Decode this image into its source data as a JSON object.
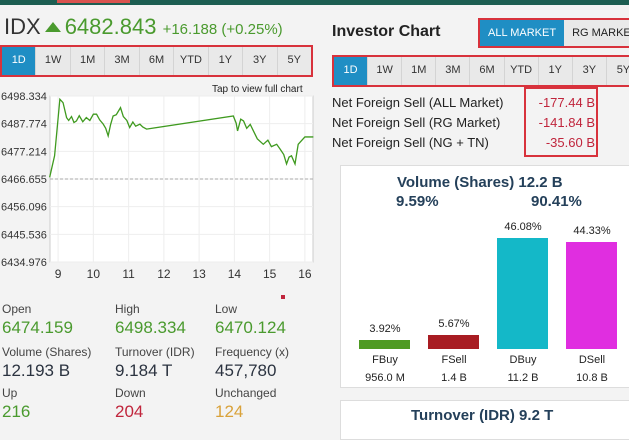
{
  "header": {
    "index": "IDX",
    "value": "6482.843",
    "change": "+16.188 (+0.25%)"
  },
  "periods": [
    "1D",
    "1W",
    "1M",
    "3M",
    "6M",
    "YTD",
    "1Y",
    "3Y",
    "5Y"
  ],
  "active_period": "1D",
  "chart_hint": "Tap to view full chart",
  "chart_data": {
    "type": "line",
    "yticks": [
      "6498.334",
      "6487.774",
      "6477.214",
      "6466.655",
      "6456.096",
      "6445.536",
      "6434.976"
    ],
    "ylim": [
      6434.976,
      6498.334
    ],
    "xticks": [
      "9",
      "10",
      "11",
      "12",
      "13",
      "14",
      "15",
      "16"
    ],
    "xlim": [
      8.77,
      16.23
    ],
    "reference_line": 6466.655,
    "series": [
      {
        "name": "IDX",
        "color": "#3f9a1f",
        "x": [
          8.76,
          8.9,
          9.05,
          9.14,
          9.24,
          9.3,
          9.38,
          9.45,
          9.52,
          9.6,
          9.7,
          9.8,
          9.9,
          10.0,
          10.09,
          10.18,
          10.28,
          10.35,
          10.42,
          10.49,
          10.56,
          10.65,
          10.77,
          10.85,
          10.95,
          11.03,
          11.12,
          11.2,
          11.32,
          11.4,
          11.51,
          13.97,
          14.05,
          14.09,
          14.18,
          14.26,
          14.35,
          14.45,
          14.54,
          14.65,
          14.82,
          14.95,
          15.05,
          15.2,
          15.3,
          15.4,
          15.48,
          15.55,
          15.62,
          15.72,
          15.81,
          16.0,
          16.24
        ],
        "y": [
          6467.3,
          6475.5,
          6497.1,
          6495.8,
          6490.1,
          6489.0,
          6490.5,
          6488.2,
          6488.8,
          6490.8,
          6488.5,
          6490.1,
          6489.0,
          6491.4,
          6491.4,
          6489.2,
          6487.6,
          6486.0,
          6483.1,
          6487.5,
          6490.7,
          6491.2,
          6493.9,
          6490.5,
          6489.0,
          6486.3,
          6488.4,
          6486.8,
          6487.6,
          6486.5,
          6485.7,
          6490.7,
          6488.0,
          6485.0,
          6489.5,
          6488.8,
          6486.0,
          6487.5,
          6485.0,
          6482.0,
          6479.9,
          6481.5,
          6479.0,
          6479.9,
          6478.0,
          6476.0,
          6472.4,
          6475.0,
          6475.5,
          6472.4,
          6479.9,
          6482.7,
          6482.7
        ]
      }
    ]
  },
  "stats": [
    {
      "label": "Open",
      "value": "6474.159",
      "color": "green"
    },
    {
      "label": "High",
      "value": "6498.334",
      "color": "green"
    },
    {
      "label": "Low",
      "value": "6470.124",
      "color": "green"
    },
    {
      "label": "Volume (Shares)",
      "value": "12.193 B",
      "color": "dark"
    },
    {
      "label": "Turnover (IDR)",
      "value": "9.184 T",
      "color": "dark"
    },
    {
      "label": "Frequency (x)",
      "value": "457,780",
      "color": "dark"
    },
    {
      "label": "Up",
      "value": "216",
      "color": "green"
    },
    {
      "label": "Down",
      "value": "204",
      "color": "red"
    },
    {
      "label": "Unchanged",
      "value": "124",
      "color": "amber"
    }
  ],
  "investor": {
    "title": "Investor Chart",
    "markets": [
      "ALL MARKET",
      "RG MARKET"
    ],
    "net_foreign": [
      {
        "label": "Net Foreign Sell (ALL Market)",
        "value": "-177.44 B"
      },
      {
        "label": "Net Foreign Sell (RG Market)",
        "value": "-141.84 B"
      },
      {
        "label": "Net Foreign Sell (NG + TN)",
        "value": "-35.60 B"
      }
    ],
    "volume": {
      "title": "Volume (Shares)  12.2 B",
      "foreign_pct": "9.59%",
      "domestic_pct": "90.41%",
      "bars": [
        {
          "name": "FBuy",
          "pct": 3.92,
          "pct_label": "3.92%",
          "amount": "956.0 M",
          "color": "#4e9a22"
        },
        {
          "name": "FSell",
          "pct": 5.67,
          "pct_label": "5.67%",
          "amount": "1.4 B",
          "color": "#a81c22"
        },
        {
          "name": "DBuy",
          "pct": 46.08,
          "pct_label": "46.08%",
          "amount": "11.2 B",
          "color": "#14b8c8"
        },
        {
          "name": "DSell",
          "pct": 44.33,
          "pct_label": "44.33%",
          "amount": "10.8 B",
          "color": "#e02ee0"
        }
      ]
    },
    "turnover_title": "Turnover (IDR)  9.2 T"
  }
}
